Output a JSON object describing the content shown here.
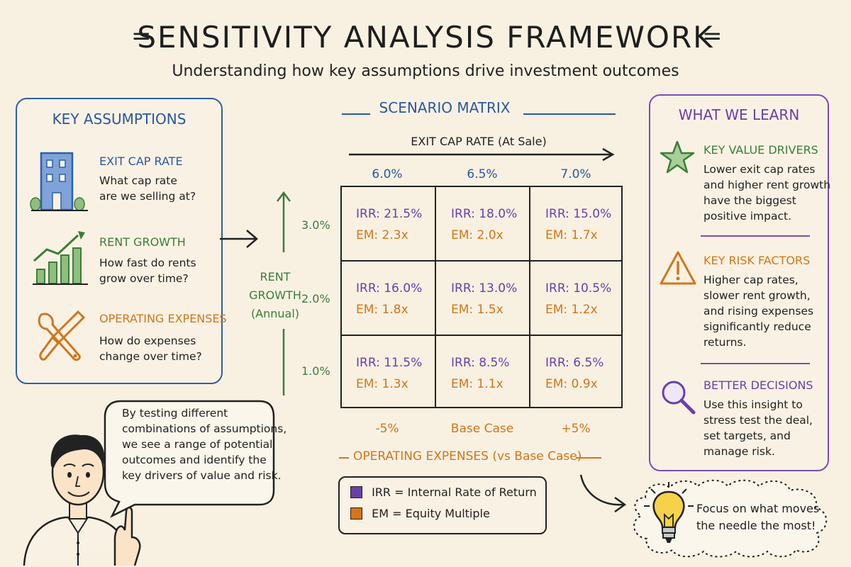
{
  "header": {
    "title": "SENSITIVITY ANALYSIS FRAMEWORK",
    "subtitle": "Understanding how key assumptions drive investment outcomes"
  },
  "assumptions": {
    "title": "KEY ASSUMPTIONS",
    "items": [
      {
        "title": "EXIT CAP RATE",
        "line1": "What cap rate",
        "line2": "are we selling at?",
        "icon": "building-icon"
      },
      {
        "title": "RENT GROWTH",
        "line1": "How fast do rents",
        "line2": "grow over time?",
        "icon": "growth-chart-icon"
      },
      {
        "title": "OPERATING EXPENSES",
        "line1": "How do expenses",
        "line2": "change over time?",
        "icon": "tools-icon"
      }
    ]
  },
  "matrix": {
    "title": "SCENARIO MATRIX",
    "x_axis_label": "EXIT CAP RATE (At Sale)",
    "columns": [
      "6.0%",
      "6.5%",
      "7.0%"
    ],
    "y_axis_label_1": "RENT",
    "y_axis_label_2": "GROWTH",
    "y_axis_label_3": "(Annual)",
    "rows": [
      "3.0%",
      "2.0%",
      "1.0%"
    ],
    "cells": [
      [
        {
          "irr": "IRR: 21.5%",
          "em": "EM: 2.3x"
        },
        {
          "irr": "IRR: 18.0%",
          "em": "EM: 2.0x"
        },
        {
          "irr": "IRR: 15.0%",
          "em": "EM: 1.7x"
        }
      ],
      [
        {
          "irr": "IRR: 16.0%",
          "em": "EM: 1.8x"
        },
        {
          "irr": "IRR: 13.0%",
          "em": "EM: 1.5x"
        },
        {
          "irr": "IRR: 10.5%",
          "em": "EM: 1.2x"
        }
      ],
      [
        {
          "irr": "IRR: 11.5%",
          "em": "EM: 1.3x"
        },
        {
          "irr": "IRR: 8.5%",
          "em": "EM: 1.1x"
        },
        {
          "irr": "IRR: 6.5%",
          "em": "EM: 0.9x"
        }
      ]
    ],
    "opex_columns": [
      "-5%",
      "Base Case",
      "+5%"
    ],
    "opex_label": "OPERATING EXPENSES (vs Base Case)"
  },
  "legend": {
    "irr": "IRR = Internal Rate of Return",
    "em": "EM = Equity Multiple"
  },
  "learn": {
    "title": "WHAT WE LEARN",
    "sections": [
      {
        "title": "KEY VALUE DRIVERS",
        "icon": "star-icon",
        "lines": [
          "Lower exit cap rates",
          "and higher rent growth",
          "have the biggest",
          "positive impact."
        ]
      },
      {
        "title": "KEY RISK FACTORS",
        "icon": "warning-icon",
        "lines": [
          "Higher cap rates,",
          "slower rent growth,",
          "and rising expenses",
          "significantly reduce",
          "returns."
        ]
      },
      {
        "title": "BETTER DECISIONS",
        "icon": "magnifier-icon",
        "lines": [
          "Use this insight to",
          "stress test the deal,",
          "set targets, and",
          "manage risk."
        ]
      }
    ]
  },
  "speech": {
    "lines": [
      "By testing different",
      "combinations of assumptions,",
      "we see a range of potential",
      "outcomes and identify the",
      "key drivers of value and risk."
    ]
  },
  "tip": {
    "line1": "Focus on what moves",
    "line2": "the needle the most!"
  },
  "colors": {
    "irr": "#6b3fa8",
    "em": "#d67418",
    "blue": "#2b57a3",
    "green": "#3d7d3a",
    "background": "#f8f1e2"
  }
}
